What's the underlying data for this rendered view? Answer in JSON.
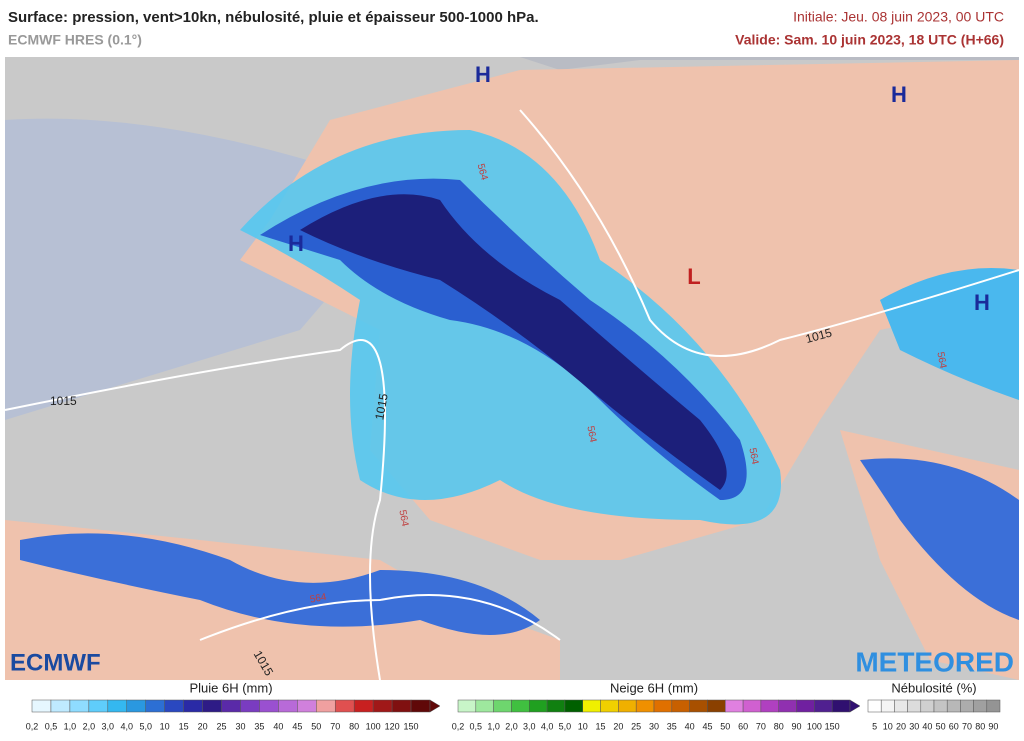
{
  "header": {
    "title": "Surface: pression, vent>10kn, nébulosité, pluie et épaisseur 500-1000 hPa.",
    "model": "ECMWF HRES (0.1°)",
    "initial": "Initiale: Jeu. 08 juin 2023, 00 UTC",
    "valid": "Valide: Sam. 10 juin 2023, 18 UTC (H+66)"
  },
  "map": {
    "highs": [
      "H",
      "H",
      "H",
      "H"
    ],
    "lows": [
      "L"
    ],
    "isobars": [
      "1015",
      "1015",
      "1015",
      "1015"
    ],
    "thickness": [
      "564",
      "564",
      "564",
      "564",
      "564",
      "564"
    ]
  },
  "logos": {
    "left": "ECMWF",
    "right": "METEORED"
  },
  "legends": [
    {
      "title": "Pluie 6H (mm)",
      "ticks": [
        "0,2",
        "0,5",
        "1,0",
        "2,0",
        "3,0",
        "4,0",
        "5,0",
        "10",
        "15",
        "20",
        "25",
        "30",
        "35",
        "40",
        "45",
        "50",
        "70",
        "80",
        "100",
        "120",
        "150"
      ]
    },
    {
      "title": "Neige 6H (mm)",
      "ticks": [
        "0,2",
        "0,5",
        "1,0",
        "2,0",
        "3,0",
        "4,0",
        "5,0",
        "10",
        "15",
        "20",
        "25",
        "30",
        "35",
        "40",
        "45",
        "50",
        "60",
        "70",
        "80",
        "90",
        "100",
        "150"
      ]
    },
    {
      "title": "Nébulosité (%)",
      "ticks": [
        "5",
        "10",
        "20",
        "30",
        "40",
        "50",
        "60",
        "70",
        "80",
        "90"
      ]
    }
  ]
}
